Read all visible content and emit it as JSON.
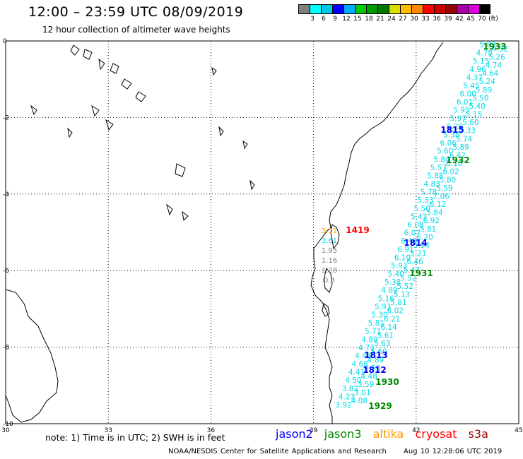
{
  "title": "12:00 – 23:59 UTC 08/09/2019",
  "subtitle": "12 hour collection of altimeter wave heights",
  "colorbar": {
    "colors": [
      "#808080",
      "#00ffff",
      "#00c8e6",
      "#0000ff",
      "#00aaff",
      "#00cc00",
      "#009900",
      "#007700",
      "#dddd00",
      "#ffbb00",
      "#ff8800",
      "#ff0000",
      "#cc0000",
      "#990000",
      "#aa00aa",
      "#dd00dd",
      "#000000"
    ],
    "labels": [
      "3",
      "6",
      "9",
      "12",
      "15",
      "18",
      "21",
      "24",
      "27",
      "30",
      "33",
      "36",
      "39",
      "42",
      "45",
      "70",
      "(ft)"
    ]
  },
  "axes": {
    "x_ticks": [
      "30",
      "33",
      "36",
      "39",
      "42",
      "45"
    ],
    "y_ticks": [
      "0",
      "-2",
      "-4",
      "-6",
      "-8",
      "-10"
    ]
  },
  "tracks": [
    {
      "name": "jason2",
      "color": "#0000ff",
      "time_labels": [
        "1815",
        "1814",
        "1813",
        "1812"
      ]
    },
    {
      "name": "jason3",
      "color": "#008800",
      "time_labels": [
        "1933",
        "1932",
        "1931",
        "1930",
        "1929"
      ]
    },
    {
      "name": "altika",
      "color": "#ff9900",
      "time_labels": []
    },
    {
      "name": "cryosat",
      "color": "#ff0000",
      "time_labels": [
        "1419"
      ]
    },
    {
      "name": "s3a",
      "color": "#990000",
      "time_labels": []
    }
  ],
  "track_values": {
    "main_track": [
      "5.83",
      "4.32",
      "4.78",
      "5.26",
      "5.15",
      "4.74",
      "4.96",
      "4.64",
      "4.37",
      "5.24",
      "5.45",
      "5.89",
      "6.00",
      "5.50",
      "6.01",
      "5.40",
      "5.95",
      "5.15",
      "5.97",
      "5.60",
      "6.28",
      "5.33",
      "5.38",
      "5.74",
      "6.06",
      "5.89",
      "5.60",
      "6.42",
      "5.84",
      "6.10",
      "5.57",
      "6.02",
      "5.88",
      "5.80",
      "4.83",
      "5.59",
      "5.78",
      "7.06",
      "5.33",
      "6.12",
      "5.50",
      "5.84",
      "5.43",
      "6.92",
      "6.08",
      "5.81",
      "6.07",
      "6.20",
      "6.46",
      "5.94",
      "6.91",
      "5.21",
      "6.10",
      "6.46",
      "5.93",
      "5.47",
      "5.40",
      "5.52",
      "5.38",
      "5.52",
      "4.89",
      "5.13",
      "5.16",
      "5.81",
      "5.93",
      "6.02",
      "5.30",
      "6.21",
      "5.81",
      "6.14",
      "5.71",
      "5.61",
      "4.89",
      "5.63",
      "4.71",
      "5.69",
      "4.48",
      "4.89",
      "4.68",
      "4.50",
      "4.41",
      "4.48",
      "4.50",
      "3.59",
      "3.82",
      "3.01",
      "4.23",
      "4.08",
      "3.92"
    ],
    "coastal_track": [
      "3.51",
      "3.61",
      "1.95",
      "1.16",
      "1.28",
      "0.3"
    ]
  },
  "note": "note: 1) Time is in UTC; 2) SWH is in feet",
  "footer": {
    "credit": "NOAA/NESDIS Center for Satellite Applications and Research",
    "timestamp": "Aug 10 12:28:06 UTC 2019"
  }
}
